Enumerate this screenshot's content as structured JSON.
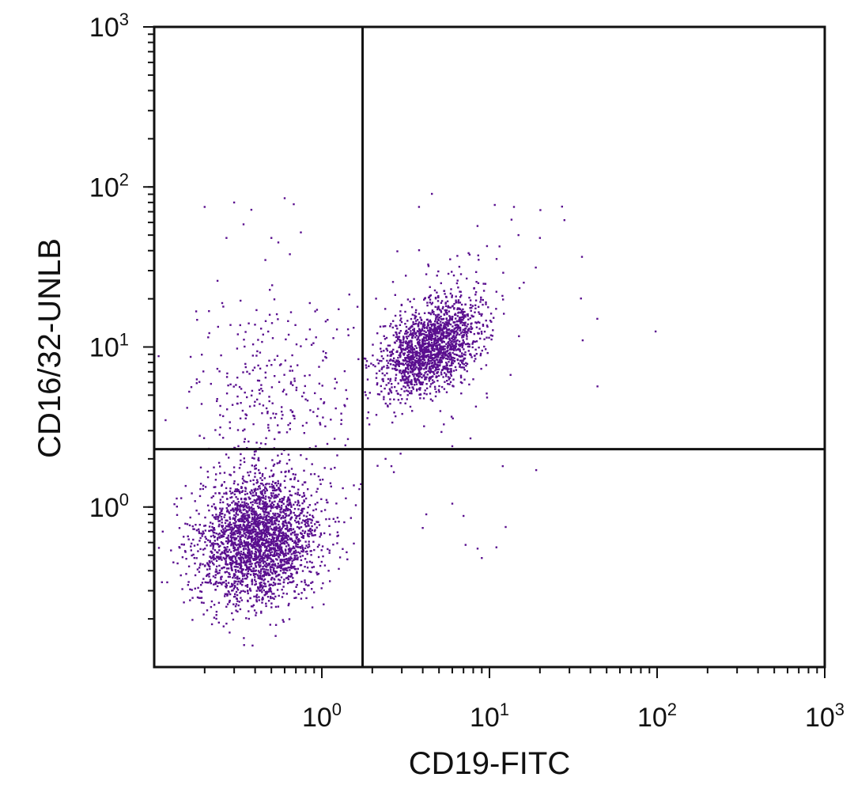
{
  "chart_data": {
    "type": "scatter",
    "title": "",
    "xlabel": "CD19-FITC",
    "ylabel": "CD16/32-UNLB",
    "xscale": "log",
    "yscale": "log",
    "xlim": [
      0.1,
      1000
    ],
    "ylim": [
      0.1,
      1000
    ],
    "x_ticks": [
      {
        "base": "10",
        "exp": "0",
        "value": 1
      },
      {
        "base": "10",
        "exp": "1",
        "value": 10
      },
      {
        "base": "10",
        "exp": "2",
        "value": 100
      },
      {
        "base": "10",
        "exp": "3",
        "value": 1000
      }
    ],
    "y_ticks": [
      {
        "base": "10",
        "exp": "0",
        "value": 1
      },
      {
        "base": "10",
        "exp": "1",
        "value": 10
      },
      {
        "base": "10",
        "exp": "2",
        "value": 100
      },
      {
        "base": "10",
        "exp": "3",
        "value": 1000
      }
    ],
    "quadrant_gates": {
      "x": 1.75,
      "y": 2.3
    },
    "point_color": "#5a0f8f",
    "grid": false,
    "legend": "none",
    "populations": [
      {
        "label": "CD19- CD16/32+ low",
        "center": [
          0.42,
          0.62
        ],
        "spread_decades": [
          0.18,
          0.2
        ],
        "count": 2600
      },
      {
        "label": "CD19+ CD16/32+",
        "center": [
          4.5,
          10
        ],
        "spread_decades": [
          0.14,
          0.14
        ],
        "count": 1700
      },
      {
        "label": "CD19- scattered",
        "center": [
          0.5,
          5
        ],
        "spread_decades": [
          0.25,
          0.35
        ],
        "count": 320
      },
      {
        "label": "CD19+ scattered",
        "center": [
          5,
          12
        ],
        "spread_decades": [
          0.3,
          0.35
        ],
        "count": 160
      }
    ],
    "outliers": [
      [
        0.2,
        75
      ],
      [
        0.3,
        80
      ],
      [
        0.38,
        72
      ],
      [
        0.6,
        85
      ],
      [
        0.68,
        78
      ],
      [
        0.27,
        48
      ],
      [
        0.5,
        48
      ],
      [
        0.55,
        45
      ],
      [
        0.75,
        52
      ],
      [
        3.8,
        75
      ],
      [
        14,
        75
      ],
      [
        28,
        62
      ],
      [
        20,
        48
      ],
      [
        44,
        15
      ],
      [
        36,
        11
      ],
      [
        98,
        12.5
      ],
      [
        4.2,
        0.9
      ],
      [
        6,
        1.05
      ],
      [
        7,
        0.88
      ],
      [
        12.5,
        0.75
      ],
      [
        4,
        0.74
      ],
      [
        8.5,
        0.55
      ],
      [
        7.2,
        0.58
      ],
      [
        11,
        0.56
      ],
      [
        9,
        0.48
      ],
      [
        2.4,
        2.0
      ],
      [
        2.6,
        1.8
      ],
      [
        12,
        1.8
      ],
      [
        19,
        1.7
      ],
      [
        6,
        2.4
      ]
    ]
  }
}
